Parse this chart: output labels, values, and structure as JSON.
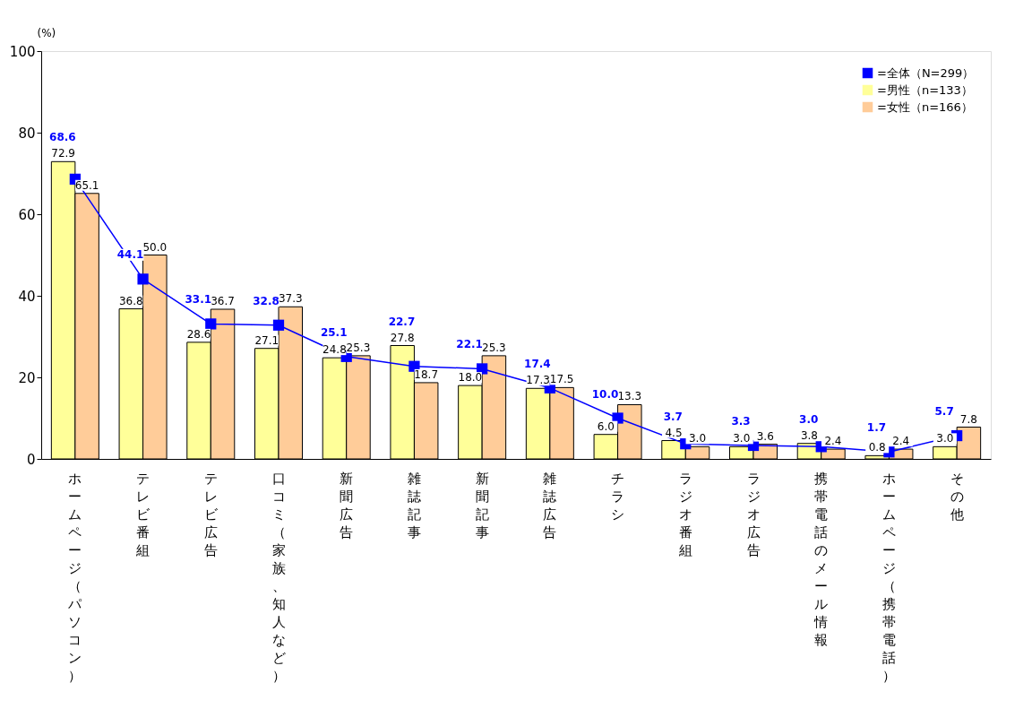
{
  "chart_data": {
    "type": "bar",
    "ylabel": "(%)",
    "ylim": [
      0,
      100
    ],
    "yticks": [
      0,
      20,
      40,
      60,
      80,
      100
    ],
    "grid": false,
    "legend": "top right",
    "marker": "square",
    "line_style": "solid",
    "categories": [
      "ホームページ（パソコン）",
      "テレビ番組",
      "テレビ広告",
      "口コミ（家族、知人など）",
      "新聞広告",
      "雑誌記事",
      "新聞記事",
      "雑誌広告",
      "チラシ",
      "ラジオ番組",
      "ラジオ広告",
      "携帯電話のメール情報",
      "ホームページ（携帯電話）",
      "その他"
    ],
    "series": [
      {
        "name": "=全体（N=299）",
        "type": "line",
        "color": "#0000ff",
        "values": [
          68.6,
          44.1,
          33.1,
          32.8,
          25.1,
          22.7,
          22.1,
          17.4,
          10.0,
          3.7,
          3.3,
          3.0,
          1.7,
          5.7
        ],
        "value_labels": [
          "68.6",
          "44.1",
          "33.1",
          "32.8",
          "25.1",
          "22.7",
          "22.1",
          "17.4",
          "10.0",
          "3.7",
          "3.3",
          "3.0",
          "1.7",
          "5.7"
        ]
      },
      {
        "name": "=男性（n=133）",
        "color": "#ffff99",
        "values": [
          72.9,
          36.8,
          28.6,
          27.1,
          24.8,
          27.8,
          18.0,
          17.3,
          6.0,
          4.5,
          3.0,
          3.8,
          0.8,
          3.0
        ],
        "value_labels": [
          "72.9",
          "36.8",
          "28.6",
          "27.1",
          "24.8",
          "27.8",
          "18.0",
          "17.3",
          "6.0",
          "4.5",
          "3.0",
          "3.8",
          "0.8",
          "3.0"
        ]
      },
      {
        "name": "=女性（n=166）",
        "color": "#ffcc99",
        "values": [
          65.1,
          50.0,
          36.7,
          37.3,
          25.3,
          18.7,
          25.3,
          17.5,
          13.3,
          3.0,
          3.6,
          2.4,
          2.4,
          7.8
        ],
        "value_labels": [
          "65.1",
          "50.0",
          "36.7",
          "37.3",
          "25.3",
          "18.7",
          "25.3",
          "17.5",
          "13.3",
          "3.0",
          "3.6",
          "2.4",
          "2.4",
          "7.8"
        ]
      }
    ]
  }
}
